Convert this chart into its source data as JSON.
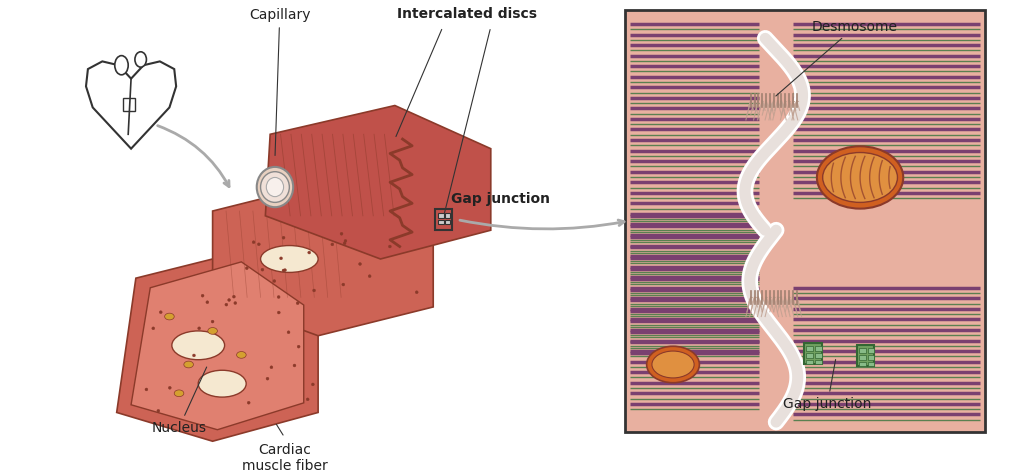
{
  "bg_color": "#ffffff",
  "labels": {
    "capillary": "Capillary",
    "intercalated_discs": "Intercalated discs",
    "gap_junction_top": "Gap junction",
    "nucleus": "Nucleus",
    "cardiac_muscle_fiber": "Cardiac\nmuscle fiber",
    "desmosome": "Desmosome",
    "gap_junction_bottom": "Gap junction"
  },
  "colors": {
    "muscle_dark": "#c0514a",
    "muscle_mid": "#cd6355",
    "muscle_light": "#e08070",
    "muscle_pale": "#e8a090",
    "skin_bg": "#e8a898",
    "detail_brown": "#8b3a2a",
    "cream": "#f5e8d0",
    "yellow_gold": "#d4a030",
    "white": "#ffffff",
    "heart_outline": "#333333",
    "arrow_gray": "#999999",
    "text_dark": "#222222",
    "sarcomere_purple": "#7a4070",
    "sarcomere_green": "#5a8050",
    "box_bg": "#e8b0a0",
    "mito_orange": "#d06020",
    "mito_inner": "#e09040",
    "gap_green": "#70a060"
  },
  "figsize": [
    10.18,
    4.76
  ],
  "dpi": 100
}
